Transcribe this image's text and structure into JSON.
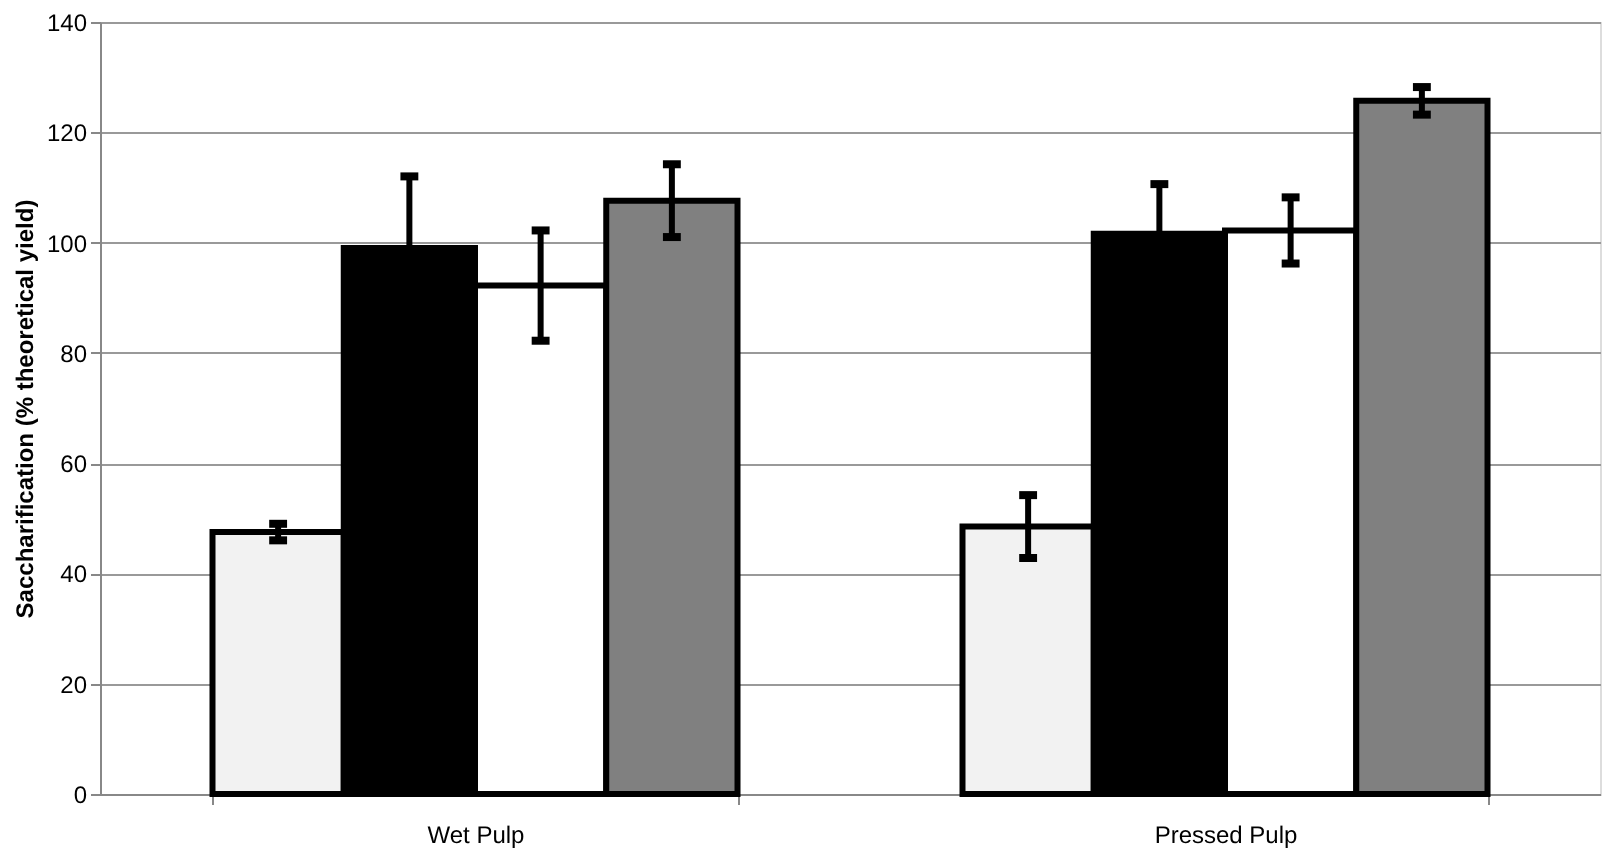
{
  "chart_data": {
    "type": "bar",
    "ylabel": "Saccharification (% theoretical yield)",
    "categories": [
      "Wet Pulp",
      "Pressed Pulp"
    ],
    "series": [
      {
        "color": "#f2f2f2",
        "values": [
          47.5,
          48.5
        ],
        "errors": [
          1.5,
          5.7
        ]
      },
      {
        "color": "#000000",
        "values": [
          99,
          101.6
        ],
        "errors": [
          13,
          9
        ]
      },
      {
        "color": "#ffffff",
        "values": [
          92.2,
          102.2
        ],
        "errors": [
          10,
          6
        ]
      },
      {
        "color": "#808080",
        "values": [
          107.6,
          125.7
        ],
        "errors": [
          6.6,
          2.5
        ]
      }
    ],
    "ylim": [
      0,
      140
    ],
    "yticks": [
      0,
      20,
      40,
      60,
      80,
      100,
      120,
      140
    ],
    "grid": "y",
    "legend": false
  }
}
